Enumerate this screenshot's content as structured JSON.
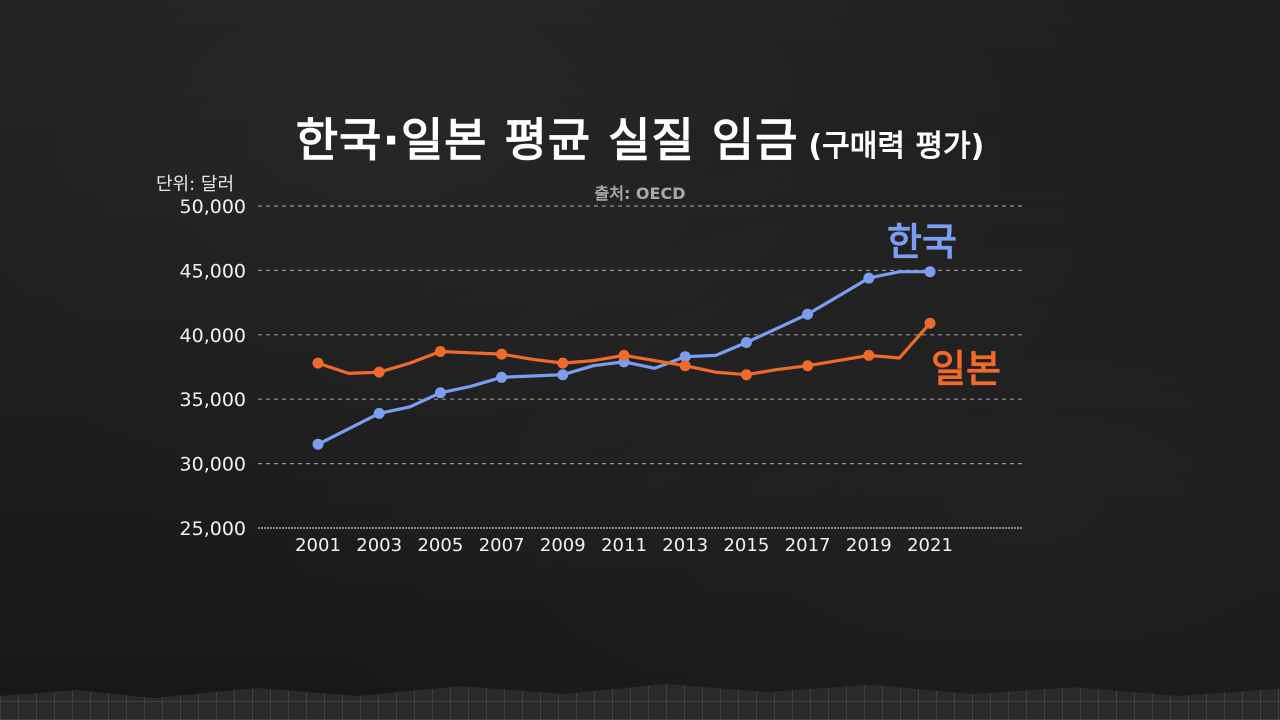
{
  "title": "한국·일본 평균 실질 임금",
  "subtitle": "(구매력 평가)",
  "source": "출처: OECD",
  "unit": "단위: 달러",
  "colors": {
    "korea": "#7b9ef0",
    "japan": "#f06a2c",
    "grid": "#bdbdbd",
    "text": "#ffffff"
  },
  "chart_data": {
    "type": "line",
    "x": [
      2001,
      2002,
      2003,
      2004,
      2005,
      2006,
      2007,
      2008,
      2009,
      2010,
      2011,
      2012,
      2013,
      2014,
      2015,
      2016,
      2017,
      2018,
      2019,
      2020,
      2021
    ],
    "x_tick_labels": [
      "2001",
      "2003",
      "2005",
      "2007",
      "2009",
      "2011",
      "2013",
      "2015",
      "2017",
      "2019",
      "2021"
    ],
    "y_tick_labels": [
      "25,000",
      "30,000",
      "35,000",
      "40,000",
      "45,000",
      "50,000"
    ],
    "ylim": [
      25000,
      50000
    ],
    "grid": "horizontal-dashed",
    "series": [
      {
        "name": "한국",
        "color": "#7b9ef0",
        "values": [
          31500,
          32700,
          33900,
          34400,
          35500,
          36000,
          36700,
          36800,
          36900,
          37600,
          37900,
          37400,
          38300,
          38400,
          39400,
          40500,
          41600,
          43000,
          44400,
          44900,
          44900
        ]
      },
      {
        "name": "일본",
        "color": "#f06a2c",
        "values": [
          37800,
          37000,
          37100,
          37800,
          38700,
          38600,
          38500,
          38100,
          37800,
          38000,
          38400,
          38000,
          37600,
          37100,
          36900,
          37300,
          37600,
          38000,
          38400,
          38200,
          40900
        ]
      }
    ]
  }
}
